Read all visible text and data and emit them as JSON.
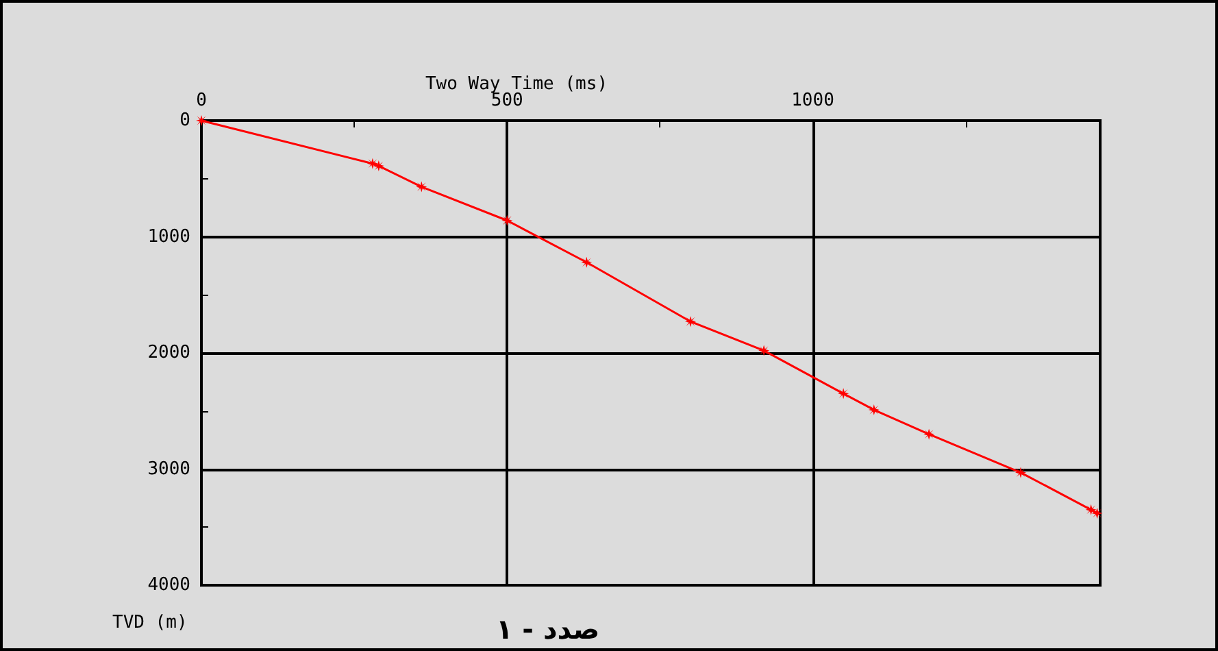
{
  "chart_data": {
    "type": "line",
    "xlabel": "Two Way Time (ms)",
    "ylabel": "TVD (m)",
    "annotations": [
      "صدد - ۱"
    ],
    "series": [
      {
        "color": "#ff0000",
        "x": [
          0,
          280,
          290,
          360,
          500,
          630,
          800,
          920,
          1050,
          1100,
          1190,
          1340,
          1455,
          1465
        ],
        "values": [
          0,
          370,
          390,
          570,
          860,
          1220,
          1730,
          1980,
          2350,
          2490,
          2700,
          3030,
          3350,
          3380
        ]
      }
    ],
    "xlim": [
      0,
      1470
    ],
    "xticks": [
      0,
      {
        "value": 250,
        "label": null
      },
      500,
      {
        "value": 750,
        "label": null
      },
      1000,
      {
        "value": 1250,
        "label": null
      }
    ],
    "ylim": [
      4000,
      0
    ],
    "yticks": [
      0,
      {
        "value": 500,
        "label": null
      },
      1000,
      {
        "value": 1500,
        "label": null
      },
      2000,
      {
        "value": 2500,
        "label": null
      },
      3000,
      {
        "value": 3500,
        "label": null
      },
      4000
    ],
    "grid": true,
    "marker": "star",
    "line_style": "solid"
  }
}
